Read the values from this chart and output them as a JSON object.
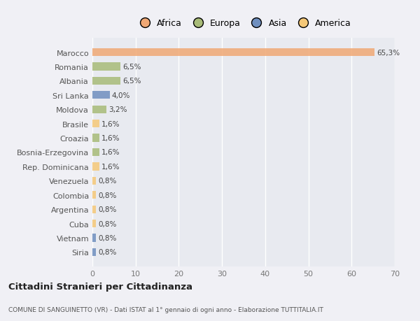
{
  "categories": [
    "Marocco",
    "Romania",
    "Albania",
    "Sri Lanka",
    "Moldova",
    "Brasile",
    "Croazia",
    "Bosnia-Erzegovina",
    "Rep. Dominicana",
    "Venezuela",
    "Colombia",
    "Argentina",
    "Cuba",
    "Vietnam",
    "Siria"
  ],
  "values": [
    65.3,
    6.5,
    6.5,
    4.0,
    3.2,
    1.6,
    1.6,
    1.6,
    1.6,
    0.8,
    0.8,
    0.8,
    0.8,
    0.8,
    0.8
  ],
  "colors": [
    "#f0a875",
    "#a8bb78",
    "#a8bb78",
    "#6f8fbf",
    "#a8bb78",
    "#f5c878",
    "#a8bb78",
    "#a8bb78",
    "#f5c878",
    "#f5c878",
    "#f5c878",
    "#f5c878",
    "#f5c878",
    "#6f8fbf",
    "#6f8fbf"
  ],
  "labels": [
    "65,3%",
    "6,5%",
    "6,5%",
    "4,0%",
    "3,2%",
    "1,6%",
    "1,6%",
    "1,6%",
    "1,6%",
    "0,8%",
    "0,8%",
    "0,8%",
    "0,8%",
    "0,8%",
    "0,8%"
  ],
  "xlim": [
    0,
    70
  ],
  "xticks": [
    0,
    10,
    20,
    30,
    40,
    50,
    60,
    70
  ],
  "legend_items": [
    {
      "label": "Africa",
      "color": "#f0a875"
    },
    {
      "label": "Europa",
      "color": "#a8bb78"
    },
    {
      "label": "Asia",
      "color": "#6f8fbf"
    },
    {
      "label": "America",
      "color": "#f5c878"
    }
  ],
  "title": "Cittadini Stranieri per Cittadinanza",
  "subtitle": "COMUNE DI SANGUINETTO (VR) - Dati ISTAT al 1° gennaio di ogni anno - Elaborazione TUTTITALIA.IT",
  "figure_bg_color": "#f0f0f5",
  "plot_bg_color": "#e8eaf0",
  "grid_color": "#ffffff",
  "bar_height": 0.55
}
